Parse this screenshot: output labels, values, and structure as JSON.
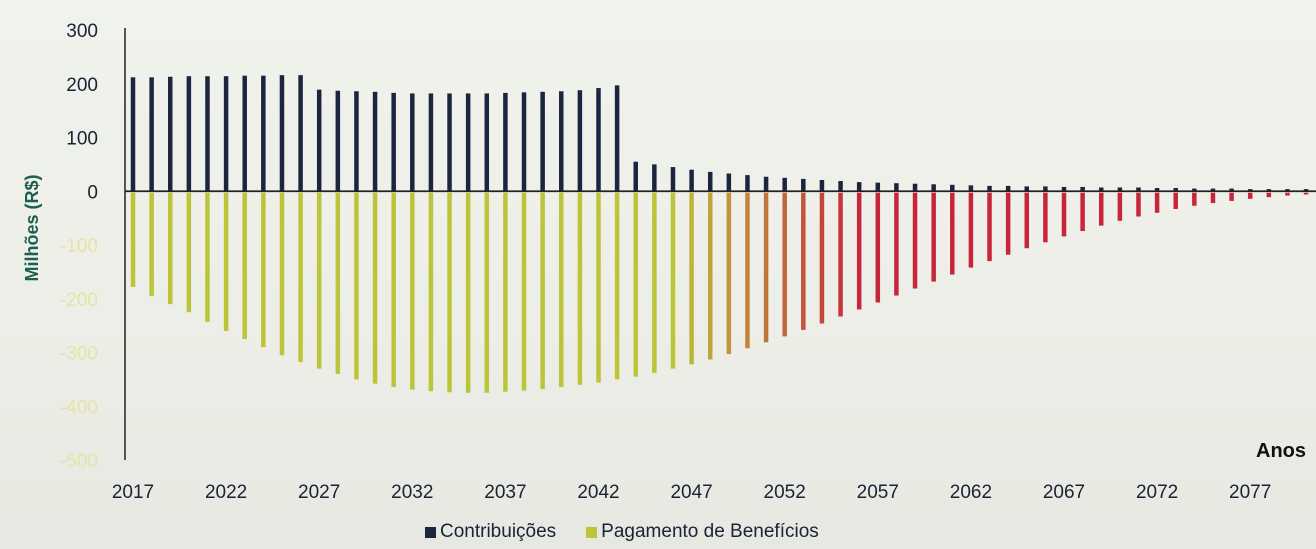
{
  "chart_data": {
    "type": "bar",
    "ylabel": "Milhões (R$)",
    "xlabel": "Anos",
    "ylim": [
      -500,
      300
    ],
    "yticks": [
      "300",
      "200",
      "100",
      "0",
      "-100",
      "-200",
      "-300",
      "-400",
      "-500"
    ],
    "x_start": 2017,
    "x_end": 2081,
    "xticks": [
      "2017",
      "2022",
      "2027",
      "2032",
      "2037",
      "2042",
      "2047",
      "2052",
      "2057",
      "2062",
      "2067",
      "2072",
      "2077"
    ],
    "colors": {
      "contribuicoes": "#1c2540",
      "beneficios_early": "#bcc43a",
      "beneficios_late": "#c8253a",
      "axis": "#222222"
    },
    "legend": [
      {
        "label": "Contribuições",
        "color": "#1c2540"
      },
      {
        "label": "Pagamento de Benefícios",
        "color": "#bcc43a"
      }
    ],
    "series": [
      {
        "name": "Contribuições",
        "values": [
          212,
          212,
          213,
          214,
          214,
          214,
          215,
          215,
          216,
          216,
          189,
          187,
          186,
          185,
          183,
          182,
          182,
          182,
          182,
          182,
          183,
          184,
          185,
          186,
          188,
          192,
          197,
          55,
          50,
          45,
          40,
          36,
          33,
          30,
          27,
          25,
          23,
          21,
          19,
          17,
          16,
          15,
          14,
          13,
          12,
          11,
          10,
          10,
          9,
          9,
          8,
          8,
          7,
          7,
          7,
          6,
          6,
          5,
          5,
          5,
          4,
          4,
          4,
          4,
          3
        ]
      },
      {
        "name": "Pagamento de Benefícios",
        "values": [
          -178,
          -195,
          -210,
          -225,
          -243,
          -260,
          -275,
          -290,
          -305,
          -318,
          -330,
          -340,
          -350,
          -358,
          -364,
          -369,
          -372,
          -374,
          -375,
          -375,
          -373,
          -371,
          -368,
          -364,
          -360,
          -356,
          -350,
          -345,
          -338,
          -330,
          -322,
          -313,
          -303,
          -292,
          -281,
          -270,
          -258,
          -246,
          -233,
          -220,
          -207,
          -194,
          -181,
          -168,
          -155,
          -142,
          -130,
          -118,
          -106,
          -95,
          -84,
          -74,
          -64,
          -55,
          -47,
          -40,
          -33,
          -27,
          -22,
          -18,
          -14,
          -11,
          -8,
          -6,
          -4
        ]
      }
    ]
  }
}
